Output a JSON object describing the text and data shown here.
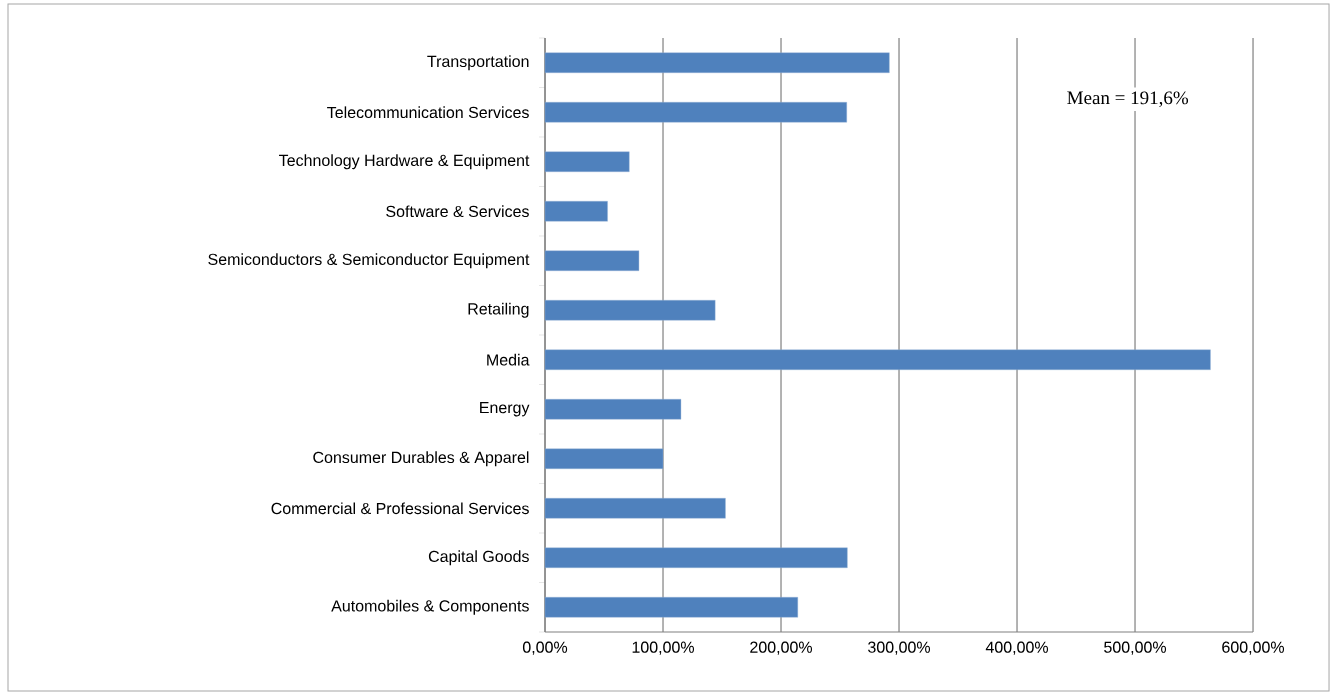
{
  "chart_data": {
    "type": "bar",
    "orientation": "horizontal",
    "categories": [
      "Transportation",
      "Telecommunication Services",
      "Technology Hardware & Equipment",
      "Software & Services",
      "Semiconductors & Semiconductor Equipment",
      "Retailing",
      "Media",
      "Energy",
      "Consumer Durables & Apparel",
      "Commercial & Professional Services",
      "Capital Goods",
      "Automobiles & Components"
    ],
    "values": [
      291.8,
      255.7,
      71.4,
      53.0,
      79.6,
      144.2,
      563.9,
      115.2,
      100.0,
      152.9,
      256.2,
      214.2
    ],
    "color": "#4f81bd",
    "xlim": [
      0,
      600
    ],
    "xticks": [
      {
        "value": 0,
        "label": "0,00%"
      },
      {
        "value": 100,
        "label": "100,00%"
      },
      {
        "value": 200,
        "label": "200,00%"
      },
      {
        "value": 300,
        "label": "300,00%"
      },
      {
        "value": 400,
        "label": "400,00%"
      },
      {
        "value": 500,
        "label": "500,00%"
      },
      {
        "value": 600,
        "label": "600,00%"
      }
    ],
    "grid": "x",
    "annotations": [
      "Mean = 191,6%"
    ]
  }
}
